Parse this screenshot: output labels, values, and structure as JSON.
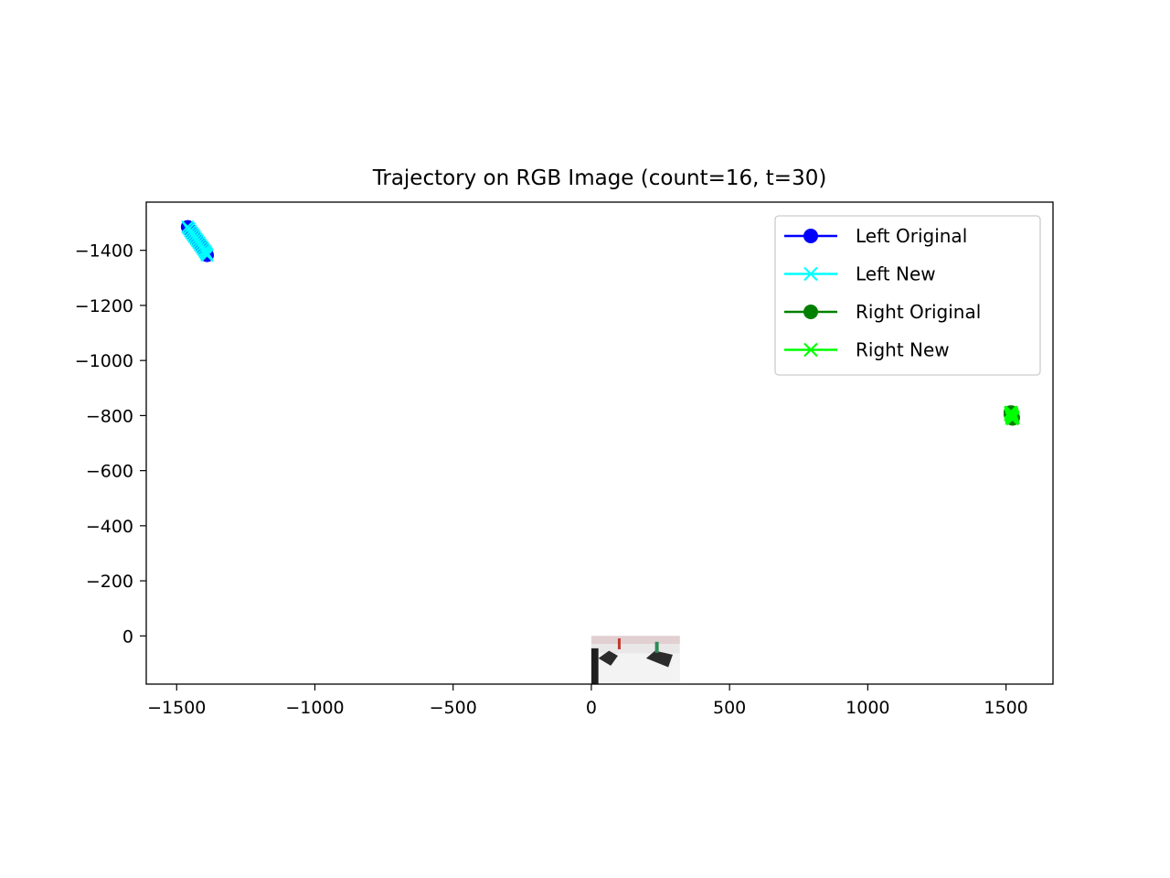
{
  "chart_data": {
    "type": "line",
    "title": "Trajectory on RGB Image (count=16, t=30)",
    "xlabel": "",
    "ylabel": "",
    "xlim": [
      -1610,
      1670
    ],
    "ylim": [
      -1575,
      175
    ],
    "y_inverted": true,
    "grid": false,
    "legend_position": "upper right",
    "x_ticks": [
      -1500,
      -1000,
      -500,
      0,
      500,
      1000,
      1500
    ],
    "x_tick_labels": [
      "−1500",
      "−1000",
      "−500",
      "0",
      "500",
      "1000",
      "1500"
    ],
    "y_ticks": [
      -1400,
      -1200,
      -1000,
      -800,
      -600,
      -400,
      -200,
      0
    ],
    "y_tick_labels": [
      "−1400",
      "−1200",
      "−1000",
      "−800",
      "−600",
      "−400",
      "−200",
      "0"
    ],
    "background_image": {
      "extent_x": [
        0,
        320
      ],
      "extent_y": [
        0,
        180
      ]
    },
    "series": [
      {
        "name": "Left Original",
        "color": "#0000ff",
        "marker": "circle",
        "x": [
          -1460,
          -1455,
          -1450,
          -1445,
          -1440,
          -1435,
          -1430,
          -1425,
          -1420,
          -1415,
          -1410,
          -1405,
          -1400,
          -1396,
          -1392,
          -1390
        ],
        "y": [
          -1485,
          -1478,
          -1470,
          -1463,
          -1456,
          -1449,
          -1442,
          -1435,
          -1428,
          -1421,
          -1414,
          -1407,
          -1400,
          -1394,
          -1388,
          -1382
        ]
      },
      {
        "name": "Left New",
        "color": "#00ffff",
        "marker": "x",
        "x": [
          -1460,
          -1455,
          -1450,
          -1445,
          -1440,
          -1435,
          -1430,
          -1425,
          -1420,
          -1415,
          -1410,
          -1405,
          -1400,
          -1396,
          -1392,
          -1390
        ],
        "y": [
          -1485,
          -1478,
          -1470,
          -1463,
          -1456,
          -1449,
          -1442,
          -1435,
          -1428,
          -1421,
          -1414,
          -1407,
          -1400,
          -1394,
          -1388,
          -1382
        ]
      },
      {
        "name": "Right Original",
        "color": "#008000",
        "marker": "circle",
        "x": [
          1516,
          1518,
          1520,
          1522,
          1524,
          1526,
          1524,
          1522,
          1520,
          1518,
          1516,
          1518,
          1520,
          1522,
          1524,
          1520
        ],
        "y": [
          -812,
          -808,
          -804,
          -800,
          -796,
          -792,
          -788,
          -792,
          -796,
          -800,
          -804,
          -808,
          -812,
          -806,
          -798,
          -790
        ]
      },
      {
        "name": "Right New",
        "color": "#00ff00",
        "marker": "x",
        "x": [
          1516,
          1518,
          1520,
          1522,
          1524,
          1526,
          1524,
          1522,
          1520,
          1518,
          1516,
          1518,
          1520,
          1522,
          1524,
          1520
        ],
        "y": [
          -812,
          -808,
          -804,
          -800,
          -796,
          -792,
          -788,
          -792,
          -796,
          -800,
          -804,
          -808,
          -812,
          -806,
          -798,
          -790
        ]
      }
    ]
  }
}
